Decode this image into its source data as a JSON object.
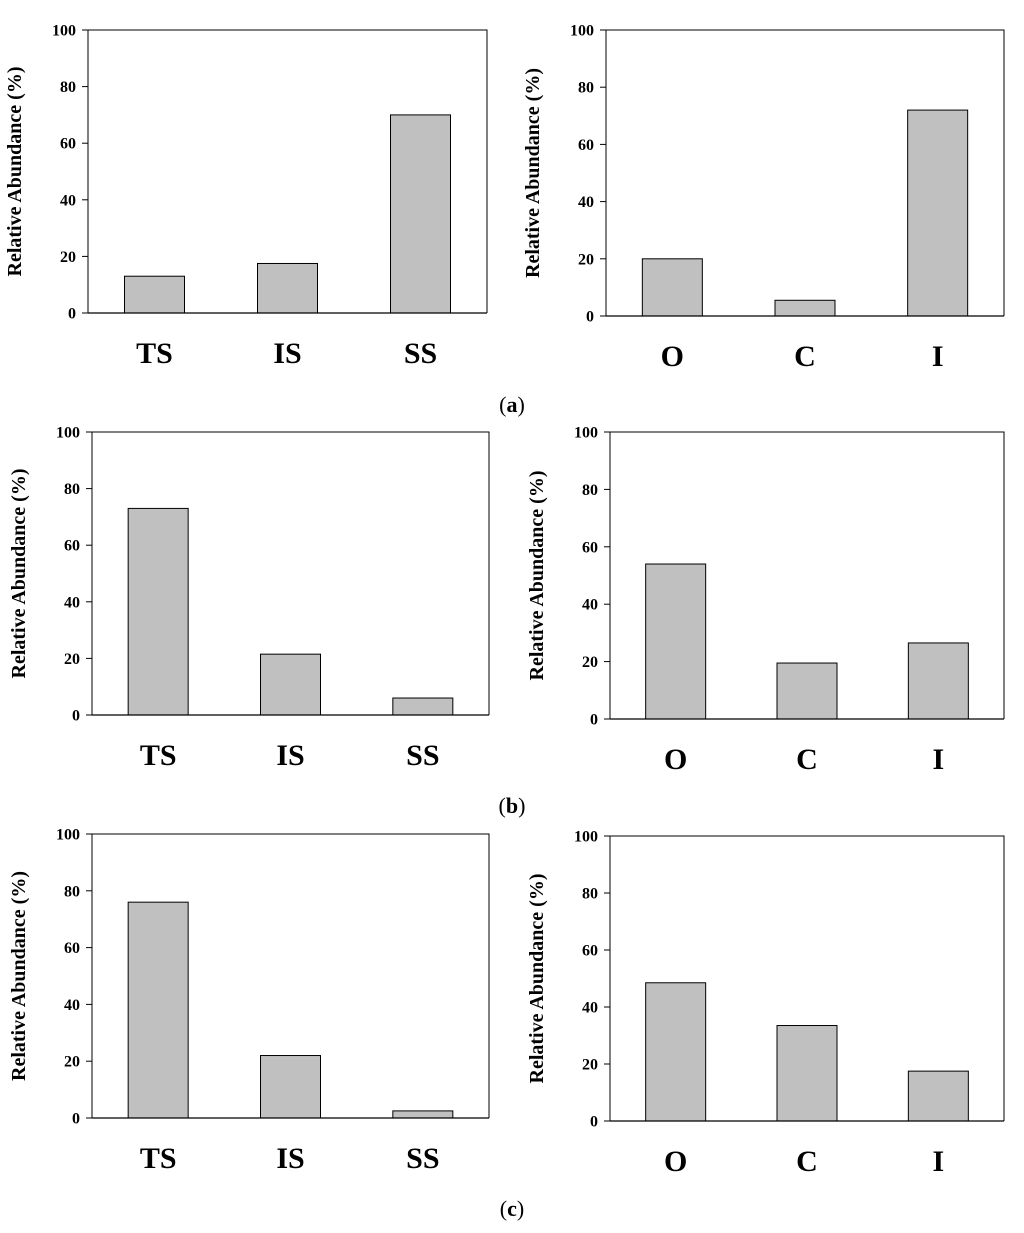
{
  "figure": {
    "panel_labels": [
      {
        "open": "(",
        "letter": "a",
        "close": ")"
      },
      {
        "open": "(",
        "letter": "b",
        "close": ")"
      },
      {
        "open": "(",
        "letter": "c",
        "close": ")"
      }
    ]
  },
  "style": {
    "bar_fill": "#c0c0c0",
    "bar_stroke": "#000000",
    "axis_color": "#000000"
  },
  "chart_data": [
    {
      "type": "bar",
      "panel": "a",
      "categories": [
        "TS",
        "IS",
        "SS"
      ],
      "values": [
        13,
        17.5,
        70
      ],
      "ylabel": "Relative Abundance (%)",
      "xlabel": "",
      "ylim": [
        0,
        100
      ],
      "yticks": [
        0,
        20,
        40,
        60,
        80,
        100
      ]
    },
    {
      "type": "bar",
      "panel": "a",
      "categories": [
        "O",
        "C",
        "I"
      ],
      "values": [
        20,
        5.5,
        72
      ],
      "ylabel": "Relative Abundance (%)",
      "xlabel": "",
      "ylim": [
        0,
        100
      ],
      "yticks": [
        0,
        20,
        40,
        60,
        80,
        100
      ]
    },
    {
      "type": "bar",
      "panel": "b",
      "categories": [
        "TS",
        "IS",
        "SS"
      ],
      "values": [
        73,
        21.5,
        6
      ],
      "ylabel": "Relative Abundance (%)",
      "xlabel": "",
      "ylim": [
        0,
        100
      ],
      "yticks": [
        0,
        20,
        40,
        60,
        80,
        100
      ]
    },
    {
      "type": "bar",
      "panel": "b",
      "categories": [
        "O",
        "C",
        "I"
      ],
      "values": [
        54,
        19.5,
        26.5
      ],
      "ylabel": "Relative Abundance (%)",
      "xlabel": "",
      "ylim": [
        0,
        100
      ],
      "yticks": [
        0,
        20,
        40,
        60,
        80,
        100
      ]
    },
    {
      "type": "bar",
      "panel": "c",
      "categories": [
        "TS",
        "IS",
        "SS"
      ],
      "values": [
        76,
        22,
        2.5
      ],
      "ylabel": "Relative Abundance (%)",
      "xlabel": "",
      "ylim": [
        0,
        100
      ],
      "yticks": [
        0,
        20,
        40,
        60,
        80,
        100
      ]
    },
    {
      "type": "bar",
      "panel": "c",
      "categories": [
        "O",
        "C",
        "I"
      ],
      "values": [
        48.5,
        33.5,
        17.5
      ],
      "ylabel": "Relative Abundance (%)",
      "xlabel": "",
      "ylim": [
        0,
        100
      ],
      "yticks": [
        0,
        20,
        40,
        60,
        80,
        100
      ]
    }
  ]
}
